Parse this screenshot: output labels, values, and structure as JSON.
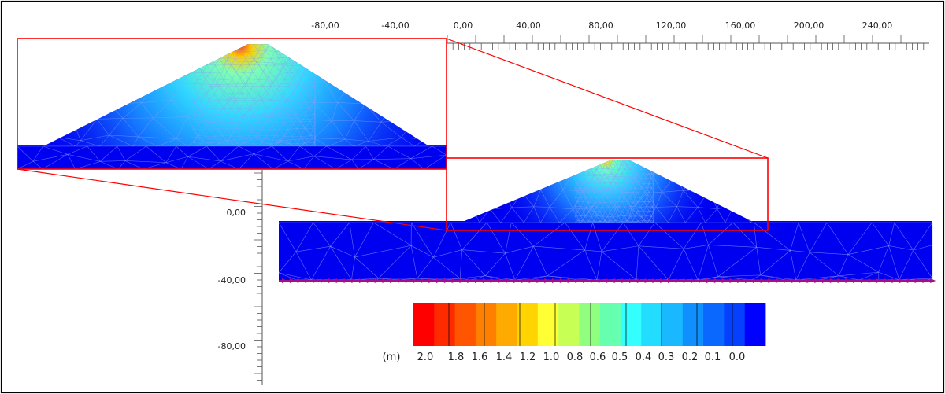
{
  "x_axis": {
    "tick_labels": [
      "-80,00",
      "-40,00",
      "0,00",
      "40,00",
      "80,00",
      "120,00",
      "160,00",
      "200,00",
      "240,00"
    ]
  },
  "y_axis": {
    "tick_labels": [
      "0,00",
      "-40,00",
      "-80,00"
    ]
  },
  "legend": {
    "unit": "(m)",
    "labels": [
      "2.0",
      "1.8",
      "1.6",
      "1.4",
      "1.2",
      "1.0",
      "0.8",
      "0.6",
      "0.5",
      "0.4",
      "0.3",
      "0.2",
      "0.1",
      "0.0"
    ],
    "colors": [
      "#ff0000",
      "#ff2a00",
      "#ff5500",
      "#ff8000",
      "#ffaa00",
      "#ffd400",
      "#ffff33",
      "#c8ff55",
      "#90ff80",
      "#66ffb0",
      "#33ffff",
      "#22ddff",
      "#1ab8ff",
      "#1090ff",
      "#0a68ff",
      "#0540ff",
      "#0000ff"
    ]
  },
  "colors": {
    "frame": "#000000",
    "highlight": "#ff0000",
    "body": "#0000f0",
    "mesh": "#8aa0ff",
    "boundary_support": "#a0108a"
  }
}
